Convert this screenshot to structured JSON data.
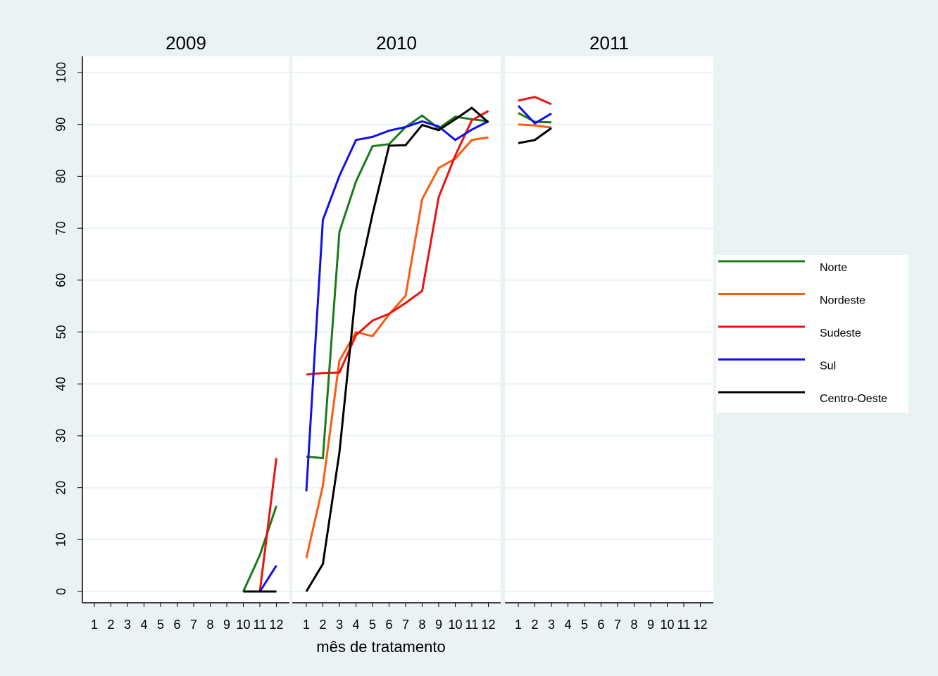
{
  "chart_data": {
    "type": "line",
    "panels": [
      "2009",
      "2010",
      "2011"
    ],
    "x_label": "mês de tratamento",
    "categories": [
      "1",
      "2",
      "3",
      "4",
      "5",
      "6",
      "7",
      "8",
      "9",
      "10",
      "11",
      "12"
    ],
    "ylim": [
      0,
      100
    ],
    "yticks": [
      0,
      10,
      20,
      30,
      40,
      50,
      60,
      70,
      80,
      90,
      100
    ],
    "grid": true,
    "legend": "right",
    "series": [
      {
        "name": "Norte",
        "color": "#1a7a1a",
        "values": [
          [
            null,
            null,
            null,
            null,
            null,
            null,
            null,
            null,
            null,
            0,
            7,
            16.5
          ],
          [
            26,
            25.7,
            69.3,
            79,
            85.8,
            86.2,
            89.5,
            91.7,
            89.2,
            91.5,
            91,
            90.6
          ],
          [
            92.2,
            90.5,
            90.4,
            null,
            null,
            null,
            null,
            null,
            null,
            null,
            null,
            null
          ]
        ]
      },
      {
        "name": "Nordeste",
        "color": "#ff5a10",
        "values": [
          [
            null,
            null,
            null,
            null,
            null,
            null,
            null,
            null,
            null,
            0,
            0,
            0
          ],
          [
            6.4,
            20.4,
            44.5,
            50,
            49.2,
            53.4,
            57,
            75.6,
            81.6,
            83.4,
            87,
            87.5
          ],
          [
            90,
            89.8,
            89.4,
            null,
            null,
            null,
            null,
            null,
            null,
            null,
            null,
            null
          ]
        ]
      },
      {
        "name": "Sudeste",
        "color": "#ee1111",
        "values": [
          [
            null,
            null,
            null,
            null,
            null,
            null,
            null,
            null,
            null,
            0,
            0,
            25.7
          ],
          [
            41.8,
            42.1,
            42.2,
            49.4,
            52.2,
            53.5,
            55.6,
            57.9,
            76,
            84,
            90.8,
            92.6
          ],
          [
            94.6,
            95.3,
            93.9,
            null,
            null,
            null,
            null,
            null,
            null,
            null,
            null,
            null
          ]
        ]
      },
      {
        "name": "Sul",
        "color": "#1010ee",
        "values": [
          [
            null,
            null,
            null,
            null,
            null,
            null,
            null,
            null,
            null,
            null,
            0,
            5
          ],
          [
            19.3,
            71.6,
            80.1,
            87,
            87.6,
            88.8,
            89.5,
            90.6,
            89.6,
            87,
            89,
            90.6
          ],
          [
            93.6,
            90.2,
            92.1,
            null,
            null,
            null,
            null,
            null,
            null,
            null,
            null,
            null
          ]
        ]
      },
      {
        "name": "Centro-Oeste",
        "color": "#000000",
        "values": [
          [
            null,
            null,
            null,
            null,
            null,
            null,
            null,
            null,
            null,
            0,
            0,
            0
          ],
          [
            0,
            5.3,
            26.8,
            58,
            72.7,
            85.9,
            86,
            89.9,
            88.9,
            91,
            93.2,
            90.4
          ],
          [
            86.4,
            87,
            89.3,
            null,
            null,
            null,
            null,
            null,
            null,
            null,
            null,
            null
          ]
        ]
      }
    ]
  }
}
